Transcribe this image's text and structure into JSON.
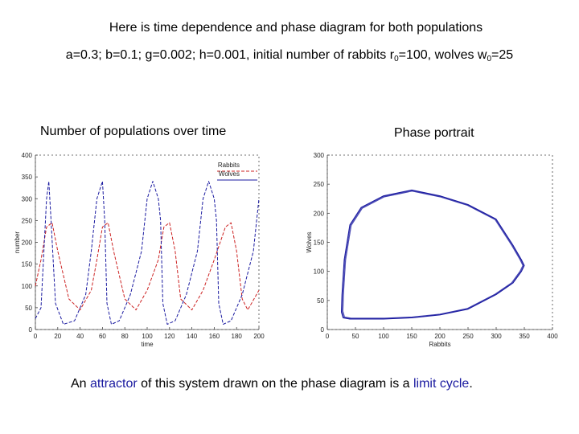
{
  "header": {
    "line1": "Here is time dependence and phase diagram for both populations",
    "line2": {
      "params": "a=0.3; b=0.1; g=0.002; h=0.001, initial number of rabbits r",
      "r_sub": "0",
      "r_val": "=100, wolves w",
      "w_sub": "0",
      "w_val": "=25"
    }
  },
  "captions": {
    "left": "Number of populations over time",
    "right": "Phase portrait"
  },
  "footer": {
    "pre": "An ",
    "attractor": "attractor",
    "mid": " of this system drawn on the phase diagram is a ",
    "limit_cycle": "limit cycle",
    "post": "."
  },
  "colors": {
    "rabbits": "#cc2222",
    "wolves": "#1a1aa0",
    "highlight": "#1a1aa0"
  },
  "chart_data": [
    {
      "type": "line",
      "xlabel": "time",
      "ylabel": "number",
      "xlim": [
        0,
        200
      ],
      "ylim": [
        0,
        400
      ],
      "xticks": [
        "0",
        "20",
        "40",
        "60",
        "80",
        "100",
        "120",
        "140",
        "160",
        "180",
        "200"
      ],
      "yticks": [
        "0",
        "50",
        "100",
        "150",
        "200",
        "250",
        "300",
        "350",
        "400"
      ],
      "legend_position": "top-right",
      "series": [
        {
          "name": "Rabbits",
          "style": "dashed",
          "color": "#cc2222",
          "x": [
            0,
            5,
            10,
            15,
            20,
            30,
            40,
            50,
            55,
            60,
            65,
            70,
            80,
            90,
            100,
            110,
            115,
            120,
            125,
            130,
            140,
            150,
            160,
            170,
            175,
            180,
            185,
            190,
            200
          ],
          "y": [
            100,
            160,
            235,
            245,
            180,
            70,
            45,
            90,
            160,
            235,
            245,
            180,
            70,
            45,
            90,
            160,
            235,
            245,
            180,
            70,
            45,
            90,
            160,
            235,
            245,
            180,
            70,
            45,
            90
          ]
        },
        {
          "name": "Wolves",
          "style": "dashed",
          "color": "#1a1aa0",
          "x": [
            0,
            5,
            10,
            12,
            14,
            18,
            25,
            35,
            45,
            50,
            55,
            60,
            62,
            64,
            68,
            75,
            85,
            95,
            100,
            105,
            110,
            112,
            114,
            118,
            125,
            135,
            145,
            150,
            155,
            160,
            162,
            164,
            168,
            175,
            185,
            195,
            200
          ],
          "y": [
            25,
            50,
            300,
            340,
            250,
            60,
            12,
            20,
            80,
            180,
            300,
            340,
            250,
            60,
            12,
            20,
            80,
            180,
            300,
            340,
            300,
            250,
            60,
            12,
            20,
            80,
            180,
            300,
            340,
            300,
            250,
            60,
            12,
            20,
            80,
            180,
            300
          ]
        }
      ]
    },
    {
      "type": "line",
      "xlabel": "Rabbits",
      "ylabel": "Wolves",
      "xlim": [
        0,
        400
      ],
      "ylim": [
        0,
        300
      ],
      "xticks": [
        "0",
        "50",
        "100",
        "150",
        "200",
        "250",
        "300",
        "350",
        "400"
      ],
      "yticks": [
        "0",
        "50",
        "100",
        "150",
        "200",
        "250",
        "300"
      ],
      "series": [
        {
          "name": "",
          "color": "#1a1aa0",
          "x": [
            30,
            28,
            26,
            25,
            28,
            40,
            60,
            100,
            150,
            200,
            250,
            300,
            330,
            345,
            350,
            345,
            330,
            300,
            250,
            200,
            150,
            100,
            60,
            40,
            30
          ],
          "y": [
            120,
            90,
            60,
            30,
            20,
            18,
            18,
            18,
            20,
            25,
            35,
            60,
            80,
            100,
            110,
            120,
            145,
            190,
            215,
            230,
            240,
            230,
            210,
            180,
            120
          ]
        }
      ]
    }
  ]
}
